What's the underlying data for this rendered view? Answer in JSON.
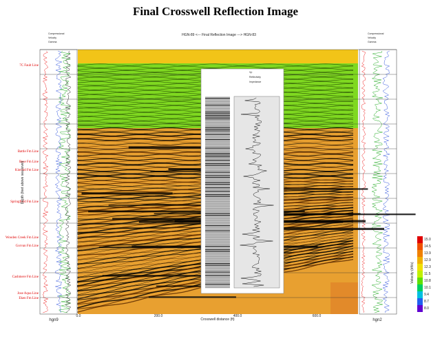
{
  "title": "Final Crosswell Reflection Image",
  "subtitle": "HGN-89 <--- Final Reflection Image ---> HGN-83",
  "x_axis_label": "Crosswell distance (ft)",
  "x_ticks": [
    "0.0",
    "200.0",
    "400.0",
    "600.0"
  ],
  "y_axis_label": "Depth (feet above sea level)",
  "wells": {
    "left": "hgn9",
    "right": "hgn2"
  },
  "formations": [
    "7C Fault Line",
    "Battle Fm Line",
    "Base Fm Line",
    "Kincaid Fm Line",
    "Springfield Fm Line",
    "Wooden Creek Fm Line",
    "Gorvan Fm Line",
    "Cashmere Fm Line",
    "Jose Aqua Line",
    "Eken Fm Line"
  ],
  "log_legend": [
    "Compressional",
    "Velocity",
    "Gamma"
  ],
  "inset_legend": [
    "Vp",
    "Reflectivity",
    "Impedance"
  ],
  "colorbar": {
    "label": "Velocity (kft/s)",
    "ticks": [
      "15.0",
      "14.5",
      "13.9",
      "12.9",
      "12.3",
      "11.5",
      "10.8",
      "10.1",
      "9.4",
      "8.7",
      "8.0"
    ]
  }
}
